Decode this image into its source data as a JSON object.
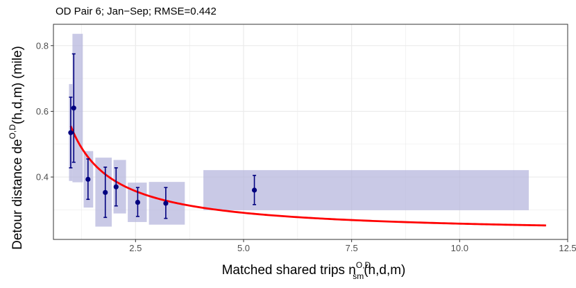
{
  "chart_data": {
    "type": "scatter",
    "title": "OD Pair 6; Jan−Sep; RMSE=0.442",
    "xlabel": {
      "main": "Matched shared trips n",
      "sup": "O,D",
      "sub": "sm",
      "suffix": "(h,d,m)"
    },
    "ylabel": {
      "main": "Detour distance de",
      "sup": "O,D",
      "suffix": "(h,d,m) (mile)"
    },
    "xlim": [
      0.6,
      12.5
    ],
    "ylim": [
      0.21,
      0.865
    ],
    "x_ticks": [
      2.5,
      5.0,
      7.5,
      10.0,
      12.5
    ],
    "x_tick_labels": [
      "2.5",
      "5.0",
      "7.5",
      "10.0",
      "12.5"
    ],
    "y_ticks": [
      0.4,
      0.6,
      0.8
    ],
    "y_tick_labels": [
      "0.4",
      "0.6",
      "0.8"
    ],
    "grid": true,
    "points": [
      {
        "x": 1.0,
        "y": 0.535,
        "ymin": 0.428,
        "ymax": 0.643
      },
      {
        "x": 1.07,
        "y": 0.61,
        "ymin": 0.445,
        "ymax": 0.775
      },
      {
        "x": 1.4,
        "y": 0.393,
        "ymin": 0.332,
        "ymax": 0.455
      },
      {
        "x": 1.8,
        "y": 0.353,
        "ymin": 0.277,
        "ymax": 0.43
      },
      {
        "x": 2.05,
        "y": 0.37,
        "ymin": 0.312,
        "ymax": 0.428
      },
      {
        "x": 2.55,
        "y": 0.323,
        "ymin": 0.28,
        "ymax": 0.368
      },
      {
        "x": 3.2,
        "y": 0.32,
        "ymin": 0.274,
        "ymax": 0.368
      },
      {
        "x": 5.25,
        "y": 0.36,
        "ymin": 0.316,
        "ymax": 0.405
      }
    ],
    "boxes": [
      {
        "xmin": 0.96,
        "xmax": 1.04,
        "ymin": 0.388,
        "ymax": 0.683
      },
      {
        "xmin": 1.04,
        "xmax": 1.28,
        "ymin": 0.384,
        "ymax": 0.836
      },
      {
        "xmin": 1.3,
        "xmax": 1.52,
        "ymin": 0.307,
        "ymax": 0.479
      },
      {
        "xmin": 1.57,
        "xmax": 1.95,
        "ymin": 0.249,
        "ymax": 0.459
      },
      {
        "xmin": 1.99,
        "xmax": 2.28,
        "ymin": 0.289,
        "ymax": 0.452
      },
      {
        "xmin": 2.32,
        "xmax": 2.76,
        "ymin": 0.263,
        "ymax": 0.383
      },
      {
        "xmin": 2.81,
        "xmax": 3.64,
        "ymin": 0.255,
        "ymax": 0.385
      },
      {
        "xmin": 4.07,
        "xmax": 11.6,
        "ymin": 0.299,
        "ymax": 0.421
      }
    ],
    "fit_curve": {
      "x_range": [
        1.0,
        12.0
      ],
      "formula": "0.225 + 0.33 / x"
    },
    "colors": {
      "point": "#00007f",
      "box": "#b2b2dc",
      "fit": "#ff0000",
      "grid": "#ebebeb",
      "axis_border": "#333333"
    }
  }
}
